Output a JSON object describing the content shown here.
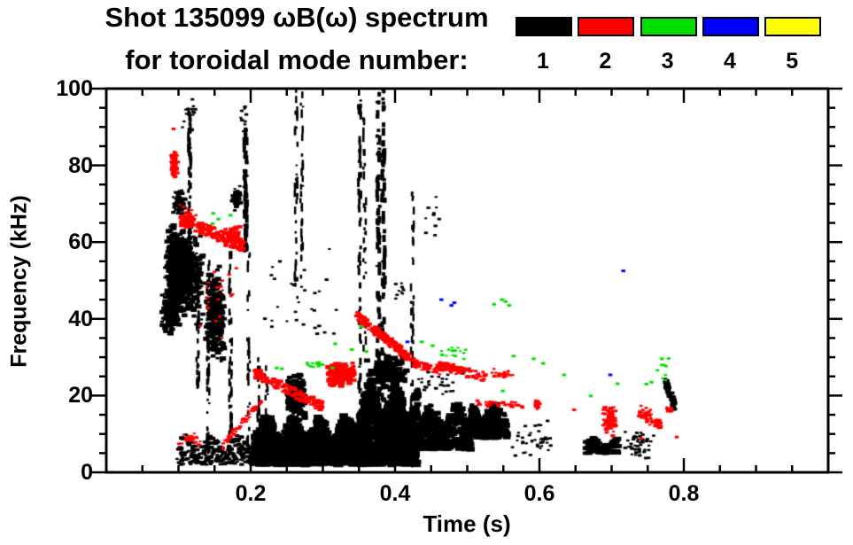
{
  "title": {
    "line1": "Shot 135099 ωB(ω) spectrum",
    "line2": "for toroidal mode number:"
  },
  "legend": {
    "modes": [
      {
        "label": "1",
        "color": "#000000"
      },
      {
        "label": "2",
        "color": "#ff0000"
      },
      {
        "label": "3",
        "color": "#00e000"
      },
      {
        "label": "4",
        "color": "#0000ff"
      },
      {
        "label": "5",
        "color": "#ffff00"
      }
    ]
  },
  "chart_data": {
    "type": "scatter",
    "subtype": "mode-spectrogram",
    "title": "Shot 135099 ωB(ω) spectrum for toroidal mode number: 1 2 3 4 5",
    "xlabel": "Time (s)",
    "ylabel": "Frequency (kHz)",
    "xlim": [
      0.0,
      1.0
    ],
    "ylim": [
      0,
      100
    ],
    "x_major_ticks": [
      0.2,
      0.4,
      0.6,
      0.8
    ],
    "x_major_tick_labels": [
      "0.2",
      "0.4",
      "0.6",
      "0.8"
    ],
    "x_minor_tick_step": 0.05,
    "y_major_ticks": [
      0,
      20,
      40,
      60,
      80,
      100
    ],
    "y_major_tick_labels": [
      "0",
      "20",
      "40",
      "60",
      "80",
      "100"
    ],
    "y_minor_tick_step": 5,
    "grid": false,
    "legend_position": "top-right",
    "series_colors": {
      "1": "#000000",
      "2": "#ff0000",
      "3": "#00e000",
      "4": "#0000ff",
      "5": "#ffff00"
    },
    "clusters": [
      {
        "mode": 1,
        "type": "blob",
        "t": [
          0.08,
          0.135
        ],
        "f": [
          38,
          66
        ],
        "n": 480,
        "s": [
          2,
          5
        ]
      },
      {
        "mode": 1,
        "type": "blob",
        "t": [
          0.085,
          0.118
        ],
        "f": [
          44,
          64
        ],
        "n": 320,
        "s": [
          3,
          6
        ]
      },
      {
        "mode": 1,
        "type": "blob",
        "t": [
          0.077,
          0.102
        ],
        "f": [
          36,
          48
        ],
        "n": 170,
        "s": [
          2,
          5
        ]
      },
      {
        "mode": 1,
        "type": "blob",
        "t": [
          0.137,
          0.165
        ],
        "f": [
          28,
          54
        ],
        "n": 240,
        "s": [
          2,
          5
        ]
      },
      {
        "mode": 1,
        "type": "blob",
        "t": [
          0.092,
          0.11
        ],
        "f": [
          66,
          75
        ],
        "n": 60,
        "s": [
          2,
          4
        ]
      },
      {
        "mode": 1,
        "type": "blob",
        "t": [
          0.173,
          0.187
        ],
        "f": [
          68,
          75
        ],
        "n": 45,
        "s": [
          2,
          4
        ]
      },
      {
        "mode": 1,
        "type": "vstreak",
        "t": 0.1155,
        "f": [
          55,
          97
        ],
        "n": 55,
        "w": 3
      },
      {
        "mode": 1,
        "type": "vstreak",
        "t": 0.127,
        "f": [
          22,
          55
        ],
        "n": 35,
        "w": 2.5
      },
      {
        "mode": 1,
        "type": "vstreak",
        "t": 0.141,
        "f": [
          5,
          57
        ],
        "n": 45,
        "w": 2.5
      },
      {
        "mode": 1,
        "type": "vstreak",
        "t": 0.172,
        "f": [
          8,
          57
        ],
        "n": 45,
        "w": 2.5
      },
      {
        "mode": 1,
        "type": "vstreak",
        "t": 0.193,
        "f": [
          58,
          90
        ],
        "n": 55,
        "w": 4
      },
      {
        "mode": 1,
        "type": "vstreak",
        "t": 0.197,
        "f": [
          3,
          58
        ],
        "n": 30,
        "w": 2.5
      },
      {
        "mode": 1,
        "type": "patch",
        "t": [
          0.098,
          0.205
        ],
        "f": [
          2,
          10
        ],
        "n": 240,
        "s": [
          2,
          4
        ]
      },
      {
        "mode": 1,
        "type": "vstreak",
        "t": 0.211,
        "f": [
          3,
          30
        ],
        "n": 25,
        "w": 2.5
      },
      {
        "mode": 1,
        "type": "vstreak",
        "t": 0.222,
        "f": [
          3,
          28
        ],
        "n": 25,
        "w": 2.5
      },
      {
        "mode": 1,
        "type": "patch",
        "t": [
          0.205,
          0.35
        ],
        "f": [
          2,
          15
        ],
        "n": 1050,
        "s": [
          3,
          7
        ]
      },
      {
        "mode": 1,
        "type": "blob",
        "t": [
          0.248,
          0.276
        ],
        "f": [
          13,
          27
        ],
        "n": 130,
        "s": [
          3,
          6
        ]
      },
      {
        "mode": 1,
        "type": "patch",
        "t": [
          0.35,
          0.432
        ],
        "f": [
          2,
          24
        ],
        "n": 950,
        "s": [
          3,
          7
        ]
      },
      {
        "mode": 1,
        "type": "blob",
        "t": [
          0.36,
          0.42
        ],
        "f": [
          21,
          31
        ],
        "n": 130,
        "s": [
          3,
          6
        ]
      },
      {
        "mode": 1,
        "type": "patch",
        "t": [
          0.432,
          0.505
        ],
        "f": [
          6,
          18
        ],
        "n": 420,
        "s": [
          3,
          6
        ]
      },
      {
        "mode": 1,
        "type": "patch",
        "t": [
          0.505,
          0.555
        ],
        "f": [
          9,
          18
        ],
        "n": 260,
        "s": [
          3,
          6
        ]
      },
      {
        "mode": 1,
        "type": "blob",
        "t": [
          0.558,
          0.625
        ],
        "f": [
          3,
          14
        ],
        "n": 40,
        "s": [
          2,
          3
        ]
      },
      {
        "mode": 1,
        "type": "patch",
        "t": [
          0.663,
          0.71
        ],
        "f": [
          5,
          9
        ],
        "n": 130,
        "s": [
          3,
          5
        ]
      },
      {
        "mode": 1,
        "type": "blob",
        "t": [
          0.715,
          0.762
        ],
        "f": [
          3,
          12
        ],
        "n": 45,
        "s": [
          2,
          3
        ]
      },
      {
        "mode": 1,
        "type": "band",
        "t": [
          0.774,
          0.788
        ],
        "f": [
          24,
          17
        ],
        "th": 3,
        "n": 60,
        "s": [
          2,
          4
        ]
      },
      {
        "mode": 1,
        "type": "vstreak",
        "t": 0.263,
        "f": [
          45,
          100
        ],
        "n": 40,
        "w": 2.5
      },
      {
        "mode": 1,
        "type": "vstreak",
        "t": 0.271,
        "f": [
          50,
          100
        ],
        "n": 30,
        "w": 2.5
      },
      {
        "mode": 1,
        "type": "vstreak",
        "t": 0.351,
        "f": [
          2,
          98
        ],
        "n": 65,
        "w": 3
      },
      {
        "mode": 1,
        "type": "vstreak",
        "t": 0.358,
        "f": [
          30,
          92
        ],
        "n": 28,
        "w": 2.5
      },
      {
        "mode": 1,
        "type": "vstreak",
        "t": 0.377,
        "f": [
          2,
          100
        ],
        "n": 85,
        "w": 4
      },
      {
        "mode": 1,
        "type": "vstreak",
        "t": 0.384,
        "f": [
          2,
          100
        ],
        "n": 85,
        "w": 4
      },
      {
        "mode": 1,
        "type": "vstreak",
        "t": 0.424,
        "f": [
          2,
          75
        ],
        "n": 50,
        "w": 2.5
      },
      {
        "mode": 1,
        "type": "blob",
        "t": [
          0.21,
          0.34
        ],
        "f": [
          28,
          62
        ],
        "n": 30,
        "s": [
          2,
          3
        ]
      },
      {
        "mode": 1,
        "type": "blob",
        "t": [
          0.43,
          0.5
        ],
        "f": [
          19,
          27
        ],
        "n": 28,
        "s": [
          2,
          3
        ]
      },
      {
        "mode": 1,
        "type": "blob",
        "t": [
          0.44,
          0.47
        ],
        "f": [
          55,
          75
        ],
        "n": 10,
        "s": [
          2,
          3
        ]
      },
      {
        "mode": 1,
        "type": "blob",
        "t": [
          0.105,
          0.133
        ],
        "f": [
          88,
          98
        ],
        "n": 16,
        "s": [
          2,
          3
        ]
      },
      {
        "mode": 1,
        "type": "blob",
        "t": [
          0.185,
          0.2
        ],
        "f": [
          88,
          98
        ],
        "n": 10,
        "s": [
          2,
          3
        ]
      },
      {
        "mode": 1,
        "type": "blob",
        "t": [
          0.4,
          0.415
        ],
        "f": [
          45,
          50
        ],
        "n": 10,
        "s": [
          2,
          3
        ]
      },
      {
        "mode": 2,
        "type": "blob",
        "t": [
          0.089,
          0.099
        ],
        "f": [
          75,
          85
        ],
        "n": 55,
        "s": [
          2,
          4
        ]
      },
      {
        "mode": 2,
        "type": "points",
        "pts": [
          [
            0.093,
            89.5
          ]
        ],
        "s": 3
      },
      {
        "mode": 2,
        "type": "band",
        "t": [
          0.102,
          0.19
        ],
        "f": [
          66,
          59
        ],
        "th": 3,
        "n": 160,
        "s": [
          2,
          4
        ]
      },
      {
        "mode": 2,
        "type": "blob",
        "t": [
          0.163,
          0.186
        ],
        "f": [
          59,
          64
        ],
        "n": 85,
        "s": [
          2,
          4
        ]
      },
      {
        "mode": 2,
        "type": "blob",
        "t": [
          0.1,
          0.125
        ],
        "f": [
          64,
          70
        ],
        "n": 22,
        "s": [
          2,
          3
        ]
      },
      {
        "mode": 2,
        "type": "band",
        "t": [
          0.162,
          0.215
        ],
        "f": [
          7,
          19
        ],
        "th": 2,
        "n": 50,
        "s": [
          2,
          3
        ]
      },
      {
        "mode": 2,
        "type": "blob",
        "t": [
          0.1,
          0.135
        ],
        "f": [
          6,
          11
        ],
        "n": 28,
        "s": [
          2,
          3
        ]
      },
      {
        "mode": 2,
        "type": "band",
        "t": [
          0.205,
          0.3
        ],
        "f": [
          26,
          17
        ],
        "th": 2.5,
        "n": 130,
        "s": [
          2,
          4
        ]
      },
      {
        "mode": 2,
        "type": "blob",
        "t": [
          0.307,
          0.345
        ],
        "f": [
          22,
          29
        ],
        "n": 150,
        "s": [
          3,
          5
        ]
      },
      {
        "mode": 2,
        "type": "band",
        "t": [
          0.346,
          0.432
        ],
        "f": [
          41,
          28
        ],
        "th": 2.5,
        "n": 160,
        "s": [
          2,
          4
        ]
      },
      {
        "mode": 2,
        "type": "band",
        "t": [
          0.432,
          0.465
        ],
        "f": [
          28,
          26
        ],
        "th": 2,
        "n": 35,
        "s": [
          2,
          3
        ]
      },
      {
        "mode": 2,
        "type": "band",
        "t": [
          0.458,
          0.525
        ],
        "f": [
          28,
          25
        ],
        "th": 2.5,
        "n": 80,
        "s": [
          2,
          4
        ]
      },
      {
        "mode": 2,
        "type": "blob",
        "t": [
          0.525,
          0.565
        ],
        "f": [
          24,
          27
        ],
        "n": 22,
        "s": [
          2,
          3
        ]
      },
      {
        "mode": 2,
        "type": "band",
        "t": [
          0.513,
          0.578
        ],
        "f": [
          18,
          17.5
        ],
        "th": 1.5,
        "n": 35,
        "s": [
          2,
          3
        ]
      },
      {
        "mode": 2,
        "type": "blob",
        "t": [
          0.588,
          0.605
        ],
        "f": [
          16,
          19
        ],
        "n": 16,
        "s": [
          2,
          3
        ]
      },
      {
        "mode": 2,
        "type": "points",
        "pts": [
          [
            0.648,
            16.3
          ],
          [
            0.79,
            9.2
          ],
          [
            0.741,
            8.8
          ]
        ],
        "s": 3
      },
      {
        "mode": 2,
        "type": "blob",
        "t": [
          0.688,
          0.707
        ],
        "f": [
          9.5,
          17.5
        ],
        "n": 65,
        "s": [
          2,
          4
        ]
      },
      {
        "mode": 2,
        "type": "blob",
        "t": [
          0.735,
          0.757
        ],
        "f": [
          12,
          17.5
        ],
        "n": 40,
        "s": [
          2,
          3
        ]
      },
      {
        "mode": 2,
        "type": "blob",
        "t": [
          0.759,
          0.769
        ],
        "f": [
          11.5,
          14
        ],
        "n": 32,
        "s": [
          2,
          4
        ]
      },
      {
        "mode": 2,
        "type": "blob",
        "t": [
          0.775,
          0.786
        ],
        "f": [
          15.5,
          17.5
        ],
        "n": 14,
        "s": [
          2,
          3
        ]
      },
      {
        "mode": 2,
        "type": "blob",
        "t": [
          0.125,
          0.185
        ],
        "f": [
          30,
          57
        ],
        "n": 20,
        "s": [
          2,
          3
        ]
      },
      {
        "mode": 3,
        "type": "points",
        "pts": [
          [
            0.148,
            67.5
          ],
          [
            0.155,
            66.0
          ],
          [
            0.172,
            67.0
          ],
          [
            0.147,
            64.8
          ],
          [
            0.236,
            27.2
          ],
          [
            0.243,
            27.0
          ],
          [
            0.313,
            27.2
          ],
          [
            0.317,
            33.5
          ],
          [
            0.34,
            32.0
          ],
          [
            0.353,
            38.0
          ],
          [
            0.36,
            31.5
          ],
          [
            0.437,
            34.0
          ],
          [
            0.452,
            33.0
          ],
          [
            0.537,
            43.8
          ],
          [
            0.548,
            45.0
          ],
          [
            0.553,
            44.5
          ],
          [
            0.558,
            43.5
          ],
          [
            0.564,
            30.3
          ],
          [
            0.592,
            29.6
          ],
          [
            0.605,
            28.4
          ],
          [
            0.634,
            25.4
          ],
          [
            0.549,
            21.2
          ],
          [
            0.671,
            19.9
          ],
          [
            0.708,
            23.1
          ],
          [
            0.748,
            23.0
          ],
          [
            0.755,
            23.5
          ]
        ],
        "s": 3
      },
      {
        "mode": 3,
        "type": "blob",
        "t": [
          0.276,
          0.302
        ],
        "f": [
          27,
          29.5
        ],
        "n": 12,
        "s": [
          2,
          3
        ]
      },
      {
        "mode": 3,
        "type": "blob",
        "t": [
          0.458,
          0.512
        ],
        "f": [
          29.5,
          33
        ],
        "n": 16,
        "s": [
          2,
          3
        ]
      },
      {
        "mode": 3,
        "type": "blob",
        "t": [
          0.763,
          0.779
        ],
        "f": [
          23,
          30
        ],
        "n": 10,
        "s": [
          2,
          3
        ]
      },
      {
        "mode": 4,
        "type": "points",
        "pts": [
          [
            0.417,
            34.0
          ],
          [
            0.464,
            45.0
          ],
          [
            0.478,
            43.5
          ],
          [
            0.482,
            44.2
          ],
          [
            0.716,
            52.5
          ],
          [
            0.698,
            25.4
          ]
        ],
        "s": 3
      }
    ]
  }
}
